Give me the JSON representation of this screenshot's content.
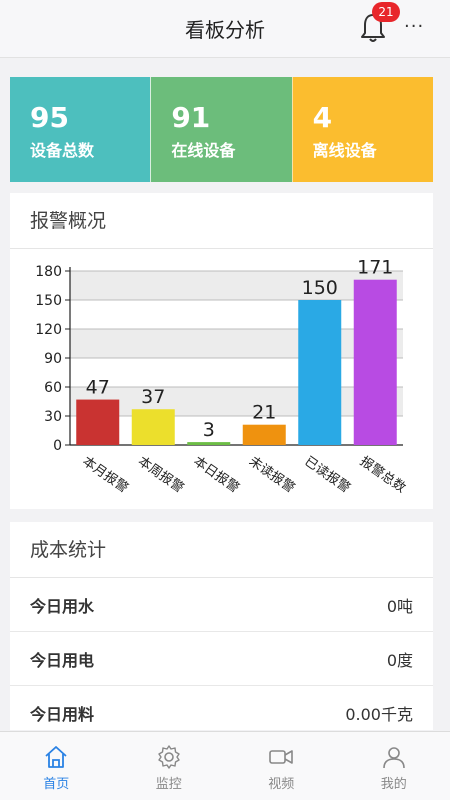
{
  "header": {
    "title": "看板分析",
    "badge_count": "21",
    "more_label": "···"
  },
  "stats": [
    {
      "value": "95",
      "label": "设备总数",
      "color": "#4dbfbe"
    },
    {
      "value": "91",
      "label": "在线设备",
      "color": "#6cbd7b"
    },
    {
      "value": "4",
      "label": "离线设备",
      "color": "#fbbd2f"
    }
  ],
  "alarm": {
    "title": "报警概况"
  },
  "chart_data": {
    "type": "bar",
    "categories": [
      "本月报警",
      "本周报警",
      "本日报警",
      "未读报警",
      "已读报警",
      "报警总数"
    ],
    "values": [
      47,
      37,
      3,
      21,
      150,
      171
    ],
    "colors": [
      "#c93331",
      "#ecdf2c",
      "#6cbd45",
      "#ef920f",
      "#2aa9e5",
      "#b84be3"
    ],
    "yticks": [
      0,
      30,
      60,
      90,
      120,
      150,
      180
    ],
    "ylim": [
      0,
      180
    ],
    "grid": true,
    "title": "",
    "xlabel": "",
    "ylabel": ""
  },
  "cost": {
    "title": "成本统计",
    "rows": [
      {
        "label": "今日用水",
        "value": "0吨"
      },
      {
        "label": "今日用电",
        "value": "0度"
      },
      {
        "label": "今日用料",
        "value": "0.00千克"
      }
    ]
  },
  "tabs": [
    {
      "label": "首页",
      "icon": "home-icon",
      "active": true
    },
    {
      "label": "监控",
      "icon": "gear-icon",
      "active": false
    },
    {
      "label": "视频",
      "icon": "video-camera-icon",
      "active": false
    },
    {
      "label": "我的",
      "icon": "user-icon",
      "active": false
    }
  ],
  "colors": {
    "accent": "#2a82e4",
    "badge": "#e8262b"
  }
}
